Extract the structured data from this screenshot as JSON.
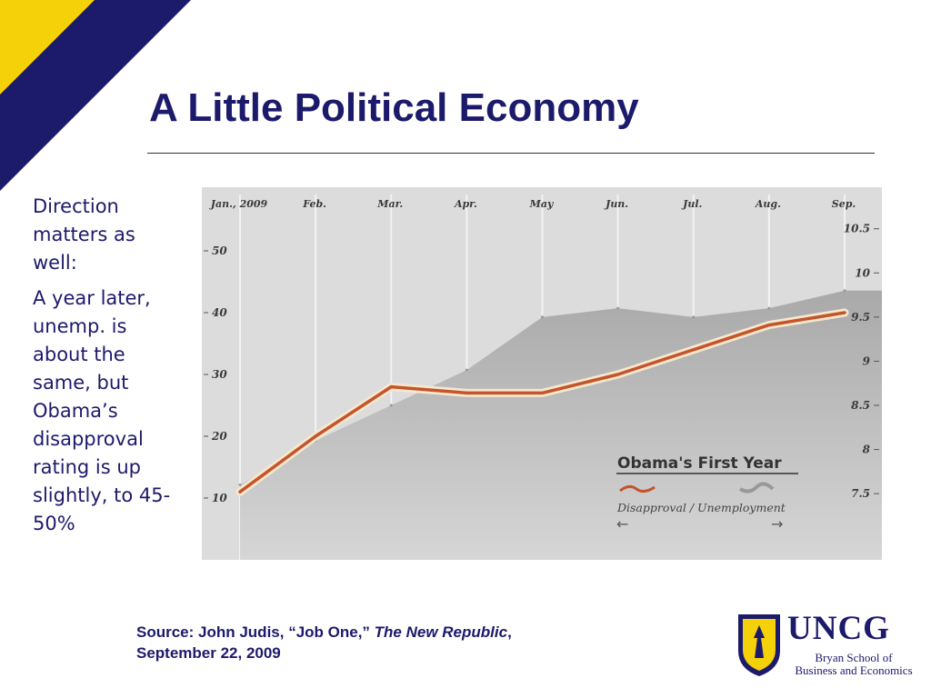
{
  "slide": {
    "title": "A Little Political Economy",
    "sidebar": [
      "Direction matters as well:",
      "A year later, unemp. is about the same, but Obama’s disapproval rating is up slightly, to 45-50%"
    ],
    "source": {
      "prefix": "Source:  John Judis, “Job One,” ",
      "publication": "The New Republic",
      "suffix": ",",
      "date": "September 22, 2009"
    },
    "logo": {
      "name": "UNCG",
      "line1": "Bryan School of",
      "line2": "Business and Economics"
    },
    "colors": {
      "navy": "#1c1a6b",
      "gold": "#f5d10a",
      "chart_bg": "#dcdcdc",
      "area": "#a9a9a9",
      "disapproval_line": "#c4552b"
    }
  },
  "chart_data": {
    "type": "line",
    "title": "Obama's First Year",
    "legend_label": "Disapproval / Unemployment",
    "legend_arrows": [
      "←",
      "→"
    ],
    "legend_position": "bottom-right",
    "categories": [
      "Jan., 2009",
      "Feb.",
      "Mar.",
      "Apr.",
      "May",
      "Jun.",
      "Jul.",
      "Aug.",
      "Sep."
    ],
    "grid": true,
    "left_axis": {
      "label": "Disapproval",
      "ticks": [
        "10",
        "20",
        "30",
        "40",
        "50"
      ],
      "range": [
        5,
        55
      ]
    },
    "right_axis": {
      "label": "Unemployment",
      "ticks": [
        "7.5",
        "8",
        "8.5",
        "9",
        "9.5",
        "10",
        "10.5"
      ],
      "range": [
        7.1,
        10.6
      ]
    },
    "series": [
      {
        "name": "Disapproval",
        "axis": "left",
        "values": [
          11,
          20,
          28,
          27,
          27,
          30,
          34,
          38,
          40
        ]
      },
      {
        "name": "Unemployment",
        "axis": "right",
        "values": [
          7.6,
          8.1,
          8.5,
          8.9,
          9.5,
          9.6,
          9.5,
          9.6,
          9.8
        ]
      }
    ]
  }
}
